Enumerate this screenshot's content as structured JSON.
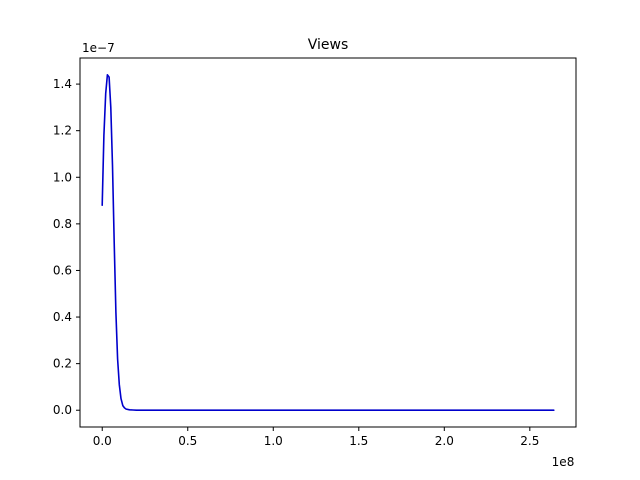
{
  "chart_data": {
    "type": "line",
    "title": "Views",
    "xlabel": "",
    "ylabel": "",
    "x_offset_text": "1e8",
    "y_offset_text": "1e−7",
    "xlim": [
      -0.13,
      2.77
    ],
    "ylim": [
      -0.072,
      1.512
    ],
    "x_ticks": [
      {
        "value": 0.0,
        "label": "0.0"
      },
      {
        "value": 0.5,
        "label": "0.5"
      },
      {
        "value": 1.0,
        "label": "1.0"
      },
      {
        "value": 1.5,
        "label": "1.5"
      },
      {
        "value": 2.0,
        "label": "2.0"
      },
      {
        "value": 2.5,
        "label": "2.5"
      }
    ],
    "y_ticks": [
      {
        "value": 0.0,
        "label": "0.0"
      },
      {
        "value": 0.2,
        "label": "0.2"
      },
      {
        "value": 0.4,
        "label": "0.4"
      },
      {
        "value": 0.6,
        "label": "0.6"
      },
      {
        "value": 0.8,
        "label": "0.8"
      },
      {
        "value": 1.0,
        "label": "1.0"
      },
      {
        "value": 1.2,
        "label": "1.2"
      },
      {
        "value": 1.4,
        "label": "1.4"
      }
    ],
    "grid": false,
    "series": [
      {
        "color": "#0000cc",
        "x": [
          0.0,
          0.01,
          0.02,
          0.03,
          0.04,
          0.05,
          0.06,
          0.07,
          0.08,
          0.09,
          0.1,
          0.11,
          0.12,
          0.13,
          0.14,
          0.16,
          0.18,
          0.2,
          0.25,
          0.5,
          1.0,
          1.5,
          2.0,
          2.5,
          2.64
        ],
        "y": [
          0.88,
          1.18,
          1.36,
          1.44,
          1.43,
          1.3,
          1.05,
          0.72,
          0.42,
          0.22,
          0.11,
          0.05,
          0.02,
          0.01,
          0.005,
          0.002,
          0.001,
          0.0,
          0.0,
          0.0,
          0.0,
          0.0,
          0.0,
          0.0,
          0.0
        ]
      }
    ]
  }
}
